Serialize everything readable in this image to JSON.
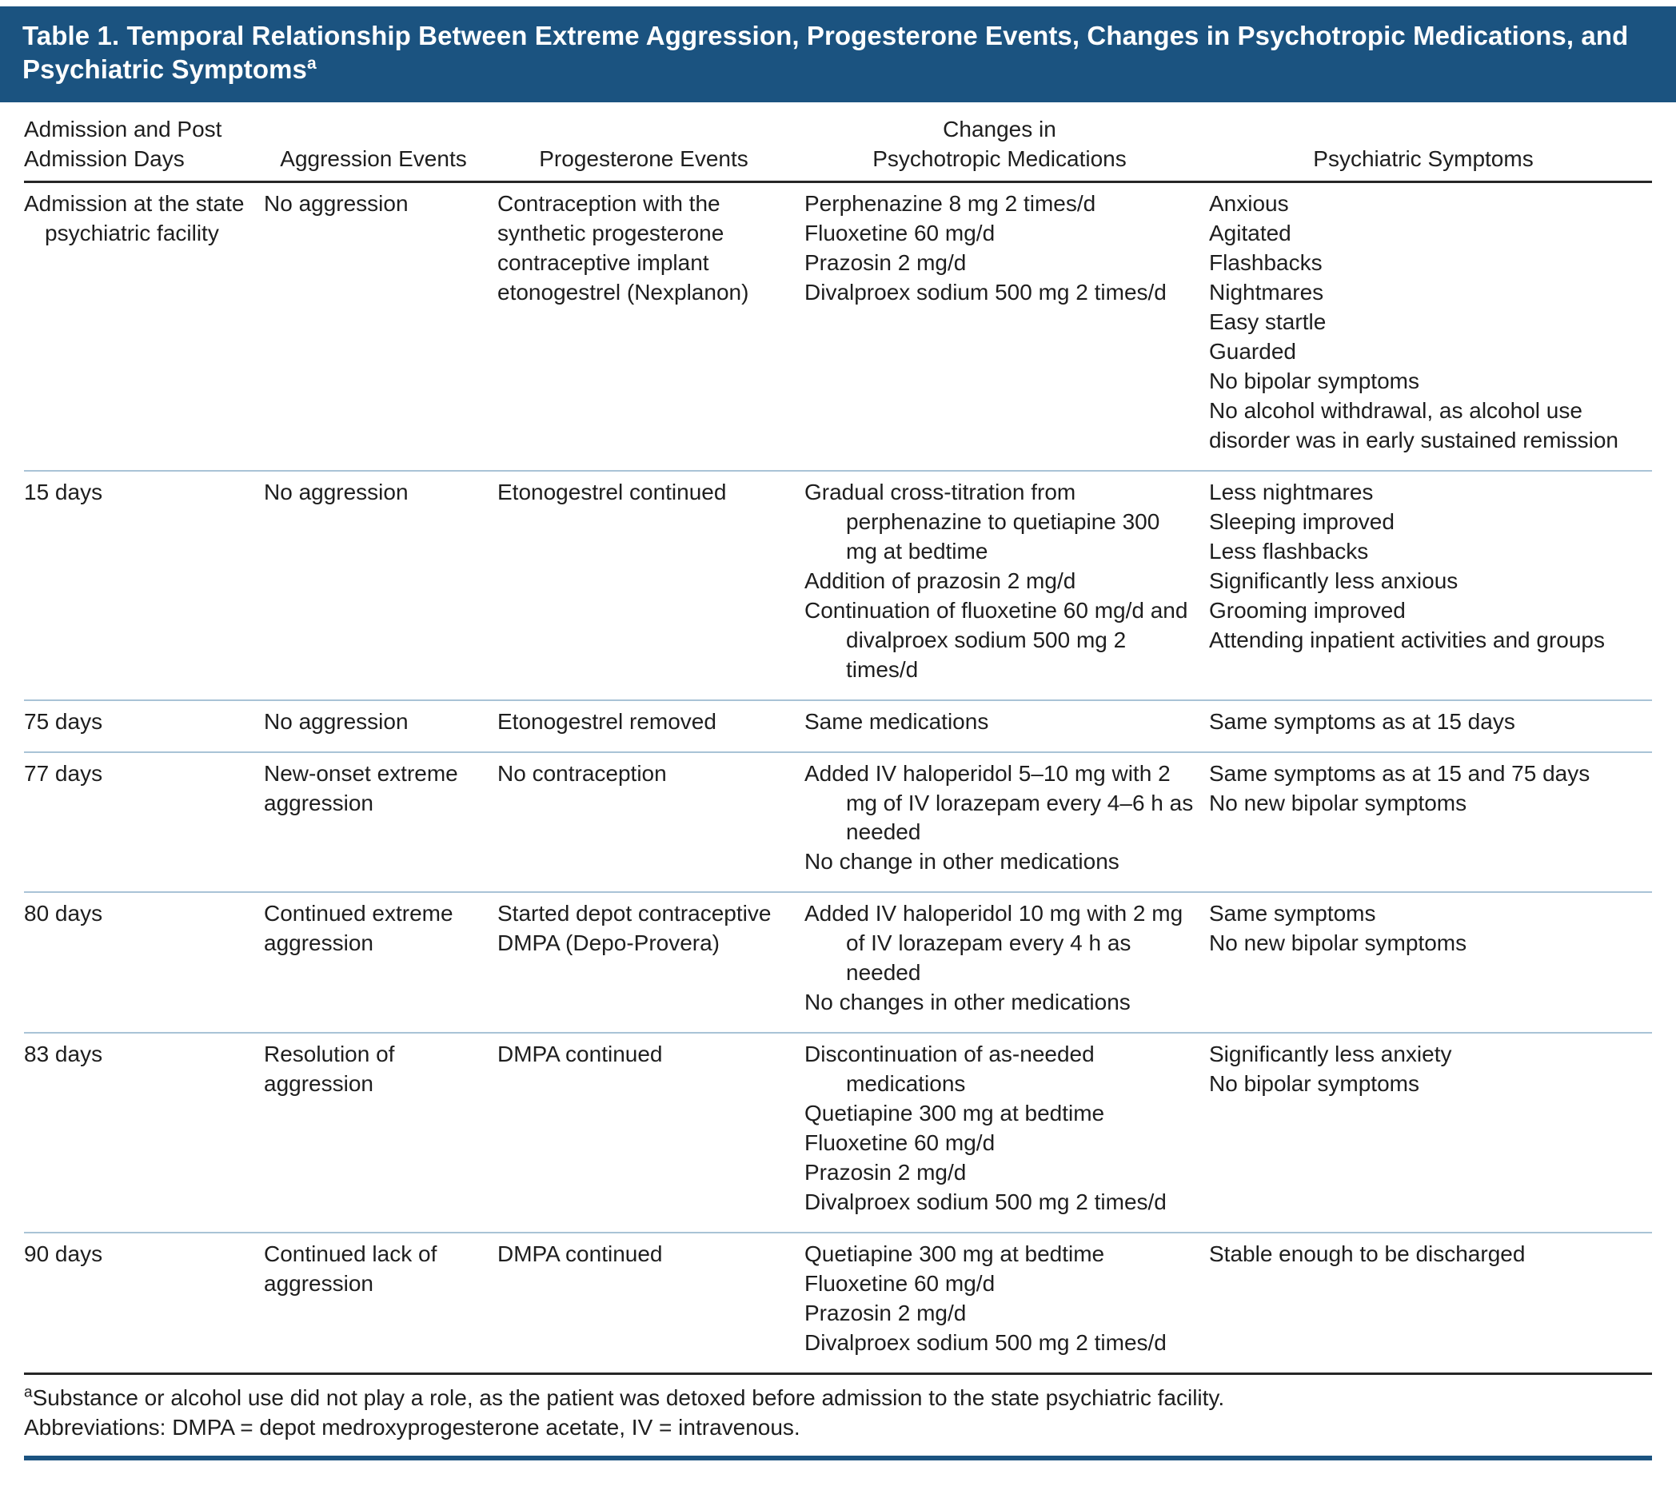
{
  "theme": {
    "accent": "#1B5380",
    "rule_light": "#A9C3D6",
    "rule_dark": "#262626"
  },
  "table": {
    "title": "Table 1. Temporal Relationship Between Extreme Aggression, Progesterone Events, Changes in Psychotropic Medications, and Psychiatric Symptoms",
    "title_note_marker": "a",
    "columns": [
      {
        "key": "days",
        "align": "left",
        "lines": [
          "Admission and Post",
          "Admission Days"
        ]
      },
      {
        "key": "aggression",
        "align": "center",
        "lines": [
          "Aggression Events"
        ]
      },
      {
        "key": "progesterone",
        "align": "center",
        "lines": [
          "Progesterone Events"
        ]
      },
      {
        "key": "medications",
        "align": "center",
        "lines": [
          "Changes in",
          "Psychotropic Medications"
        ]
      },
      {
        "key": "symptoms",
        "align": "center",
        "lines": [
          "Psychiatric Symptoms"
        ]
      }
    ],
    "rows": [
      {
        "days": [
          "Admission at the state psychiatric facility"
        ],
        "aggression": [
          "No aggression"
        ],
        "progesterone": [
          "Contraception with the synthetic progesterone contraceptive implant etonogestrel (Nexplanon)"
        ],
        "medications": [
          "Perphenazine 8 mg 2 times/d",
          "Fluoxetine 60 mg/d",
          "Prazosin 2 mg/d",
          "Divalproex sodium 500 mg 2 times/d"
        ],
        "symptoms": [
          "Anxious",
          "Agitated",
          "Flashbacks",
          "Nightmares",
          "Easy startle",
          "Guarded",
          "No bipolar symptoms",
          "No alcohol withdrawal, as alcohol use disorder was in early sustained remission"
        ]
      },
      {
        "days": [
          "15 days"
        ],
        "aggression": [
          "No aggression"
        ],
        "progesterone": [
          "Etonogestrel continued"
        ],
        "medications": [
          "Gradual cross-titration from perphenazine to quetiapine 300 mg at bedtime",
          "Addition of prazosin 2 mg/d",
          "Continuation of fluoxetine 60 mg/d and divalproex sodium 500 mg 2 times/d"
        ],
        "symptoms": [
          "Less nightmares",
          "Sleeping improved",
          "Less flashbacks",
          "Significantly less anxious",
          "Grooming improved",
          "Attending inpatient activities and groups"
        ]
      },
      {
        "days": [
          "75 days"
        ],
        "aggression": [
          "No aggression"
        ],
        "progesterone": [
          "Etonogestrel removed"
        ],
        "medications": [
          "Same medications"
        ],
        "symptoms": [
          "Same symptoms as at 15 days"
        ]
      },
      {
        "days": [
          "77 days"
        ],
        "aggression": [
          "New-onset extreme aggression"
        ],
        "progesterone": [
          "No contraception"
        ],
        "medications": [
          "Added IV haloperidol 5–10 mg with 2 mg of IV lorazepam every 4–6 h as needed",
          "No change in other medications"
        ],
        "symptoms": [
          "Same symptoms as at 15 and 75 days",
          "No new bipolar symptoms"
        ]
      },
      {
        "days": [
          "80 days"
        ],
        "aggression": [
          "Continued extreme aggression"
        ],
        "progesterone": [
          "Started depot contraceptive DMPA (Depo-Provera)"
        ],
        "medications": [
          "Added IV haloperidol 10 mg with 2 mg of IV lorazepam every 4 h as needed",
          "No changes in other medications"
        ],
        "symptoms": [
          "Same symptoms",
          "No new bipolar symptoms"
        ]
      },
      {
        "days": [
          "83 days"
        ],
        "aggression": [
          "Resolution of aggression"
        ],
        "progesterone": [
          "DMPA continued"
        ],
        "medications": [
          "Discontinuation of as-needed medications",
          "Quetiapine 300 mg at bedtime",
          "Fluoxetine 60 mg/d",
          "Prazosin 2 mg/d",
          "Divalproex sodium 500 mg 2 times/d"
        ],
        "symptoms": [
          "Significantly less anxiety",
          "No bipolar symptoms"
        ]
      },
      {
        "days": [
          "90 days"
        ],
        "aggression": [
          "Continued lack of aggression"
        ],
        "progesterone": [
          "DMPA continued"
        ],
        "medications": [
          "Quetiapine 300 mg at bedtime",
          "Fluoxetine 60 mg/d",
          "Prazosin 2 mg/d",
          "Divalproex sodium 500 mg 2 times/d"
        ],
        "symptoms": [
          "Stable enough to be discharged"
        ]
      }
    ],
    "footnotes": [
      {
        "marker": "a",
        "text": "Substance or alcohol use did not play a role, as the patient was detoxed before admission to the state psychiatric facility."
      },
      {
        "marker": "",
        "text": "Abbreviations: DMPA = depot medroxyprogesterone acetate, IV = intravenous."
      }
    ]
  }
}
